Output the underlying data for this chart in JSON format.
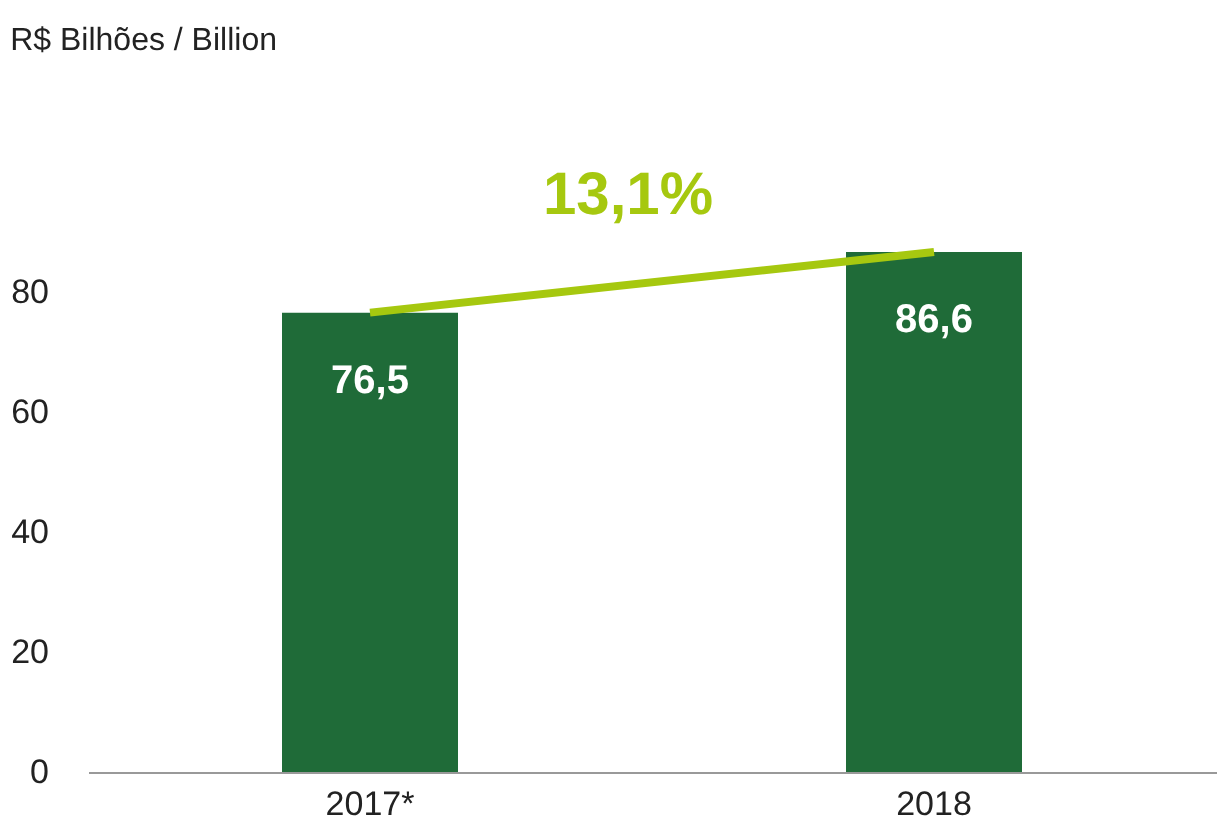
{
  "chart_data": {
    "type": "bar",
    "title": "R$ Bilhões / Billion",
    "categories": [
      "2017*",
      "2018"
    ],
    "values": [
      76.5,
      86.6
    ],
    "value_labels": [
      "76,5",
      "86,6"
    ],
    "color": "#1f6b38",
    "ylim": [
      0,
      86.6
    ],
    "yticks": [
      0,
      20,
      40,
      60,
      80
    ],
    "grid": false,
    "annotations": [
      "13,1%"
    ]
  }
}
